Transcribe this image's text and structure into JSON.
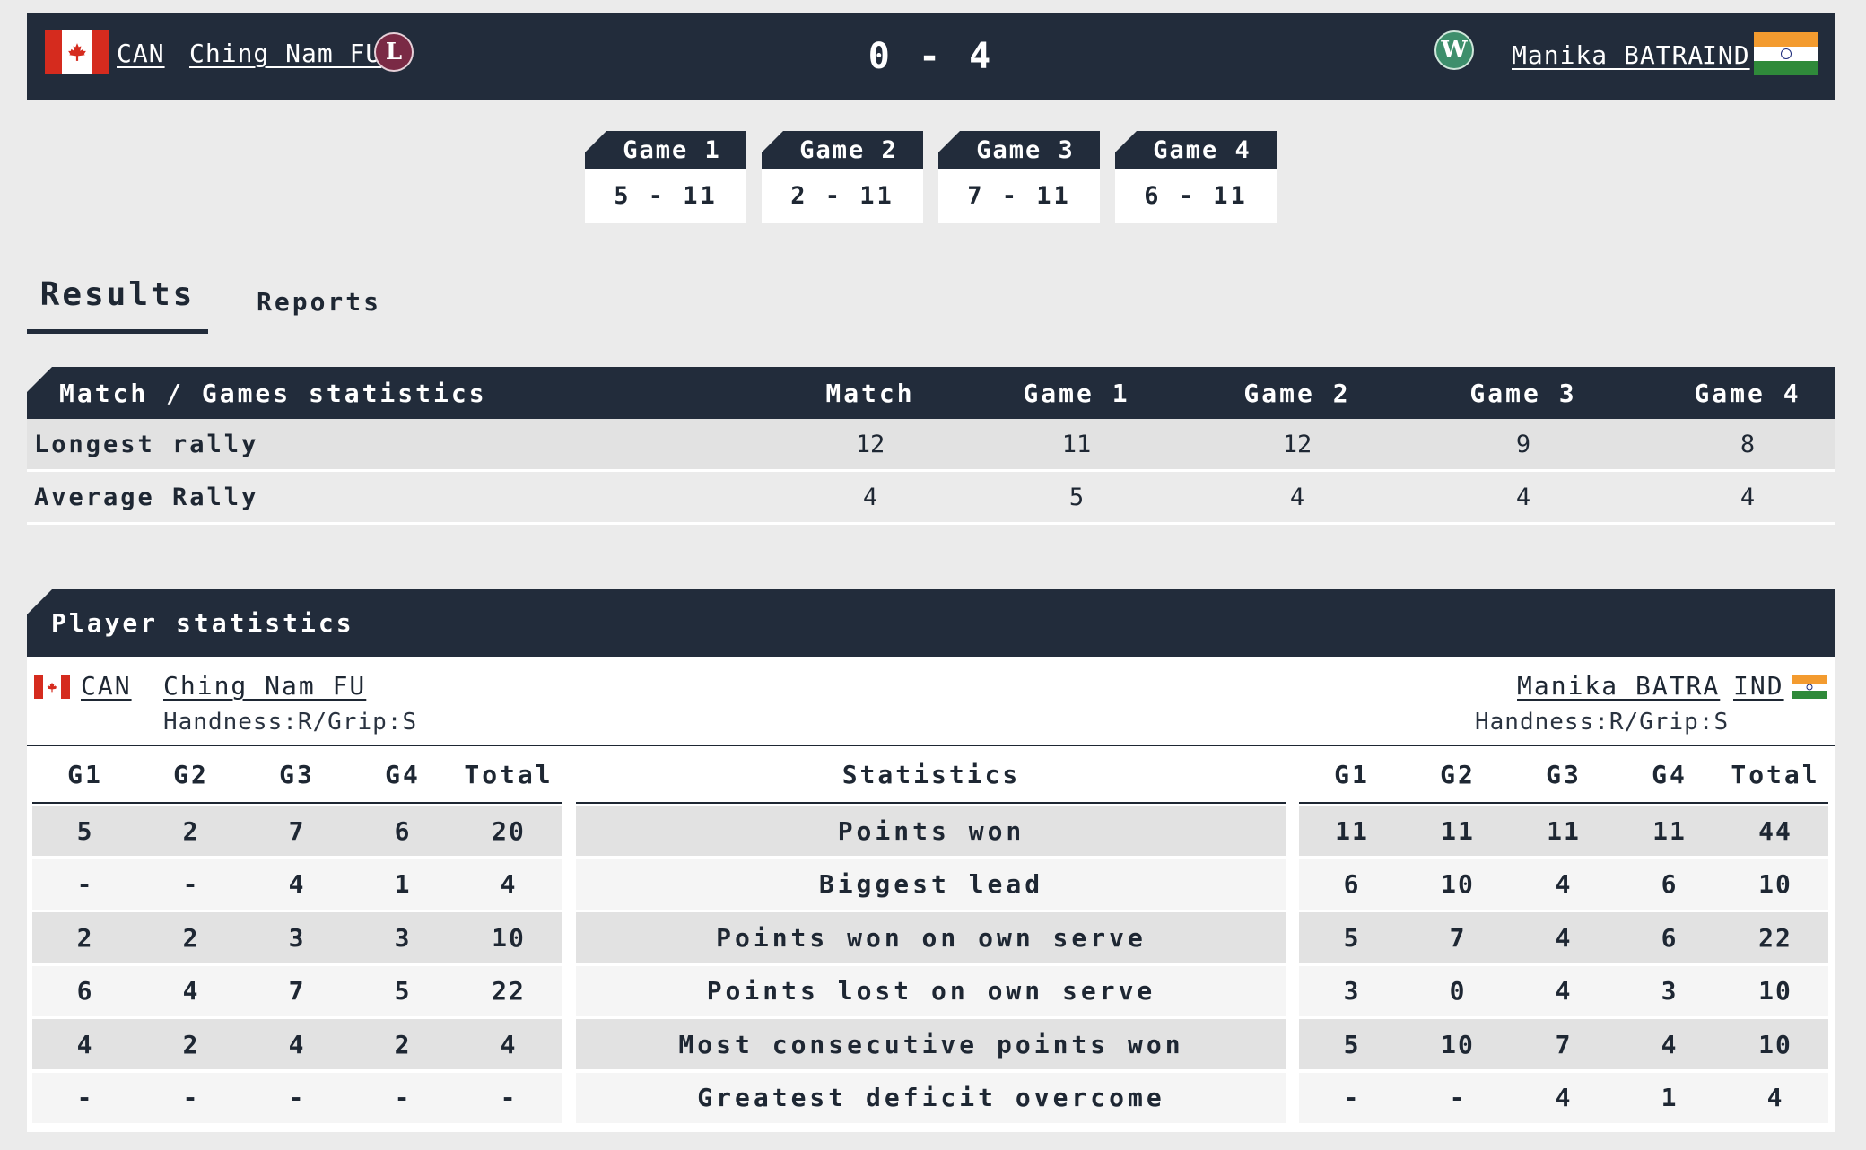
{
  "header": {
    "left": {
      "country": "CAN",
      "name": "Ching Nam FU",
      "badge": "L",
      "flag": "canada-flag"
    },
    "score": "0 - 4",
    "right": {
      "country": "IND",
      "name": "Manika BATRA",
      "badge": "W",
      "flag": "india-flag"
    }
  },
  "games": [
    {
      "label": "Game 1",
      "score": "5 - 11"
    },
    {
      "label": "Game 2",
      "score": "2 - 11"
    },
    {
      "label": "Game 3",
      "score": "7 - 11"
    },
    {
      "label": "Game 4",
      "score": "6 - 11"
    }
  ],
  "tabs": {
    "results": "Results",
    "reports": "Reports"
  },
  "match_stats": {
    "title": "Match / Games statistics",
    "columns": [
      "Match",
      "Game 1",
      "Game 2",
      "Game 3",
      "Game 4"
    ],
    "rows": [
      {
        "label": "Longest rally",
        "values": [
          "12",
          "11",
          "12",
          "9",
          "8"
        ]
      },
      {
        "label": "Average Rally",
        "values": [
          "4",
          "5",
          "4",
          "4",
          "4"
        ]
      }
    ]
  },
  "player_stats": {
    "title": "Player statistics",
    "left_player": {
      "country": "CAN",
      "name": "Ching Nam FU",
      "info": "Handness:R/Grip:S"
    },
    "right_player": {
      "country": "IND",
      "name": "Manika BATRA",
      "info": "Handness:R/Grip:S"
    },
    "game_columns": [
      "G1",
      "G2",
      "G3",
      "G4",
      "Total"
    ],
    "stat_column": "Statistics",
    "rows": [
      {
        "label": "Points won",
        "left": [
          "5",
          "2",
          "7",
          "6",
          "20"
        ],
        "right": [
          "11",
          "11",
          "11",
          "11",
          "44"
        ]
      },
      {
        "label": "Biggest lead",
        "left": [
          "-",
          "-",
          "4",
          "1",
          "4"
        ],
        "right": [
          "6",
          "10",
          "4",
          "6",
          "10"
        ]
      },
      {
        "label": "Points won on own serve",
        "left": [
          "2",
          "2",
          "3",
          "3",
          "10"
        ],
        "right": [
          "5",
          "7",
          "4",
          "6",
          "22"
        ]
      },
      {
        "label": "Points lost on own serve",
        "left": [
          "6",
          "4",
          "7",
          "5",
          "22"
        ],
        "right": [
          "3",
          "0",
          "4",
          "3",
          "10"
        ]
      },
      {
        "label": "Most consecutive points won",
        "left": [
          "4",
          "2",
          "4",
          "2",
          "4"
        ],
        "right": [
          "5",
          "10",
          "7",
          "4",
          "10"
        ]
      },
      {
        "label": "Greatest deficit overcome",
        "left": [
          "-",
          "-",
          "-",
          "-",
          "-"
        ],
        "right": [
          "-",
          "-",
          "4",
          "1",
          "4"
        ]
      }
    ]
  },
  "colors": {
    "dark": "#222c3b",
    "background": "#ebebeb",
    "shade": "#e2e2e2",
    "loss_badge": "#7a2a45",
    "win_badge": "#3e8f6c"
  }
}
